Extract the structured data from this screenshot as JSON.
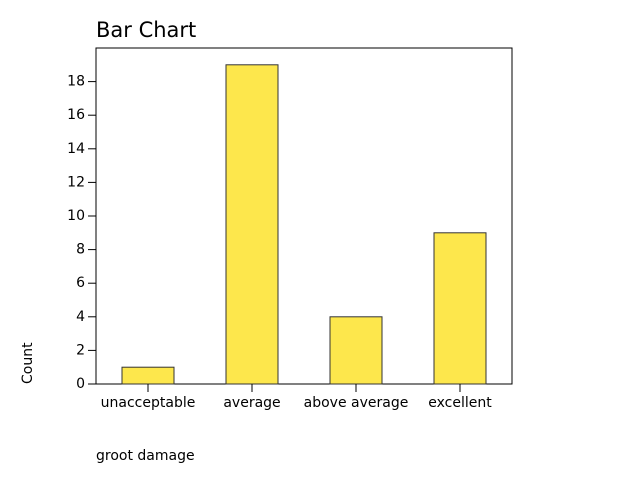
{
  "chart_data": {
    "type": "bar",
    "title": "Bar Chart",
    "x_label": "groot damage",
    "y_label": "Count",
    "categories": [
      "unacceptable",
      "average",
      "above average",
      "excellent"
    ],
    "values": [
      1,
      19,
      4,
      9
    ],
    "color": "#fde74c",
    "ylim": [
      0,
      20
    ],
    "yticks": [
      0,
      2,
      4,
      6,
      8,
      10,
      12,
      14,
      16,
      18
    ],
    "grid": false
  }
}
